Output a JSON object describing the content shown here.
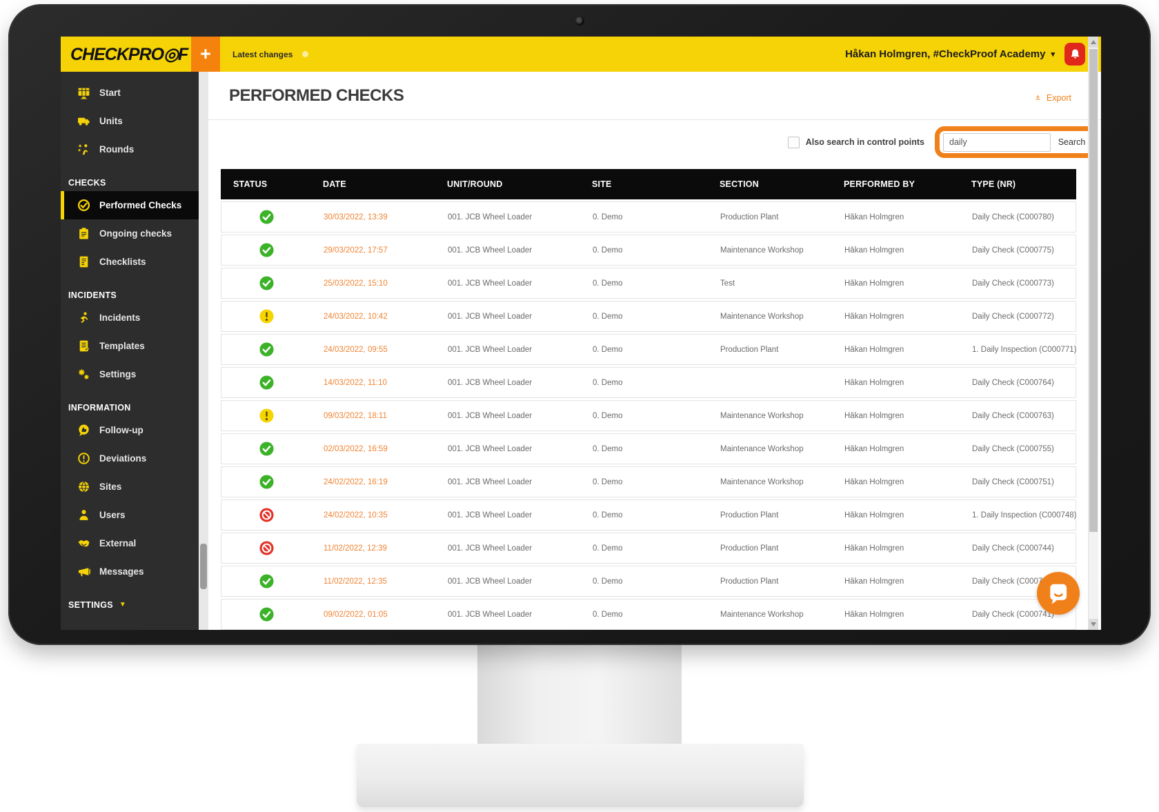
{
  "topbar": {
    "logo": "CHECKPRO◎F",
    "plus_glyph": "+",
    "latest_changes": "Latest changes",
    "user_menu": "Håkan Holmgren, #CheckProof Academy",
    "caret_glyph": "▾",
    "bell_icon": "bell-icon"
  },
  "sidebar": {
    "entries": [
      {
        "type": "item",
        "label": "Start",
        "icon": "monitor-icon"
      },
      {
        "type": "item",
        "label": "Units",
        "icon": "truck-icon"
      },
      {
        "type": "item",
        "label": "Rounds",
        "icon": "route-person-icon"
      },
      {
        "type": "section",
        "label": "CHECKS"
      },
      {
        "type": "item",
        "label": "Performed Checks",
        "icon": "check-circle-icon",
        "active": true
      },
      {
        "type": "item",
        "label": "Ongoing checks",
        "icon": "clipboard-icon"
      },
      {
        "type": "item",
        "label": "Checklists",
        "icon": "checklist-icon"
      },
      {
        "type": "section",
        "label": "INCIDENTS"
      },
      {
        "type": "item",
        "label": "Incidents",
        "icon": "slip-person-icon"
      },
      {
        "type": "item",
        "label": "Templates",
        "icon": "template-icon"
      },
      {
        "type": "item",
        "label": "Settings",
        "icon": "gears-icon"
      },
      {
        "type": "section",
        "label": "INFORMATION"
      },
      {
        "type": "item",
        "label": "Follow-up",
        "icon": "feedback-bubble-icon"
      },
      {
        "type": "item",
        "label": "Deviations",
        "icon": "exclamation-circle-icon"
      },
      {
        "type": "item",
        "label": "Sites",
        "icon": "globe-icon"
      },
      {
        "type": "item",
        "label": "Users",
        "icon": "user-icon"
      },
      {
        "type": "item",
        "label": "External",
        "icon": "handshake-icon"
      },
      {
        "type": "item",
        "label": "Messages",
        "icon": "megaphone-icon"
      },
      {
        "type": "section-toggle",
        "label": "SETTINGS",
        "caret": "▼"
      }
    ]
  },
  "page": {
    "title": "PERFORMED CHECKS",
    "export_label": "Export",
    "export_icon": "download-icon"
  },
  "search": {
    "checkbox_label": "Also search in control points",
    "checkbox_checked": false,
    "query": "daily",
    "button_label": "Search"
  },
  "table": {
    "columns": [
      "STATUS",
      "DATE",
      "UNIT/ROUND",
      "SITE",
      "SECTION",
      "PERFORMED BY",
      "TYPE (NR)"
    ],
    "rows": [
      {
        "status": "ok",
        "date": "30/03/2022, 13:39",
        "unit": "001. JCB Wheel Loader",
        "site": "0. Demo",
        "section": "Production Plant",
        "performed_by": "Håkan Holmgren",
        "type": "Daily Check (C000780)"
      },
      {
        "status": "ok",
        "date": "29/03/2022, 17:57",
        "unit": "001. JCB Wheel Loader",
        "site": "0. Demo",
        "section": "Maintenance Workshop",
        "performed_by": "Håkan Holmgren",
        "type": "Daily Check (C000775)"
      },
      {
        "status": "ok",
        "date": "25/03/2022, 15:10",
        "unit": "001. JCB Wheel Loader",
        "site": "0. Demo",
        "section": "Test",
        "performed_by": "Håkan Holmgren",
        "type": "Daily Check (C000773)"
      },
      {
        "status": "warning",
        "date": "24/03/2022, 10:42",
        "unit": "001. JCB Wheel Loader",
        "site": "0. Demo",
        "section": "Maintenance Workshop",
        "performed_by": "Håkan Holmgren",
        "type": "Daily Check (C000772)"
      },
      {
        "status": "ok",
        "date": "24/03/2022, 09:55",
        "unit": "001. JCB Wheel Loader",
        "site": "0. Demo",
        "section": "Production Plant",
        "performed_by": "Håkan Holmgren",
        "type": "1. Daily Inspection (C000771)"
      },
      {
        "status": "ok",
        "date": "14/03/2022, 11:10",
        "unit": "001. JCB Wheel Loader",
        "site": "0. Demo",
        "section": "",
        "performed_by": "Håkan Holmgren",
        "type": "Daily Check (C000764)"
      },
      {
        "status": "warning",
        "date": "09/03/2022, 18:11",
        "unit": "001. JCB Wheel Loader",
        "site": "0. Demo",
        "section": "Maintenance Workshop",
        "performed_by": "Håkan Holmgren",
        "type": "Daily Check (C000763)"
      },
      {
        "status": "ok",
        "date": "02/03/2022, 16:59",
        "unit": "001. JCB Wheel Loader",
        "site": "0. Demo",
        "section": "Maintenance Workshop",
        "performed_by": "Håkan Holmgren",
        "type": "Daily Check (C000755)"
      },
      {
        "status": "ok",
        "date": "24/02/2022, 16:19",
        "unit": "001. JCB Wheel Loader",
        "site": "0. Demo",
        "section": "Maintenance Workshop",
        "performed_by": "Håkan Holmgren",
        "type": "Daily Check (C000751)"
      },
      {
        "status": "blocked",
        "date": "24/02/2022, 10:35",
        "unit": "001. JCB Wheel Loader",
        "site": "0. Demo",
        "section": "Production Plant",
        "performed_by": "Håkan Holmgren",
        "type": "1. Daily Inspection (C000748)"
      },
      {
        "status": "blocked",
        "date": "11/02/2022, 12:39",
        "unit": "001. JCB Wheel Loader",
        "site": "0. Demo",
        "section": "Production Plant",
        "performed_by": "Håkan Holmgren",
        "type": "Daily Check (C000744)"
      },
      {
        "status": "ok",
        "date": "11/02/2022, 12:35",
        "unit": "001. JCB Wheel Loader",
        "site": "0. Demo",
        "section": "Production Plant",
        "performed_by": "Håkan Holmgren",
        "type": "Daily Check (C000743)"
      },
      {
        "status": "ok",
        "date": "09/02/2022, 01:05",
        "unit": "001. JCB Wheel Loader",
        "site": "0. Demo",
        "section": "Maintenance Workshop",
        "performed_by": "Håkan Holmgren",
        "type": "Daily Check (C000741)"
      }
    ]
  },
  "chat": {
    "icon": "chat-bubble-icon"
  },
  "colors": {
    "brand_yellow": "#F5D306",
    "accent_orange": "#F08019",
    "date_orange": "#EF8332",
    "status_green": "#3CB229",
    "status_warning": "#F5D400",
    "status_blocked": "#E23227",
    "bell_red": "#DF271C",
    "sidebar_bg": "#2d2d2d",
    "table_header_bg": "#0b0b0b"
  }
}
